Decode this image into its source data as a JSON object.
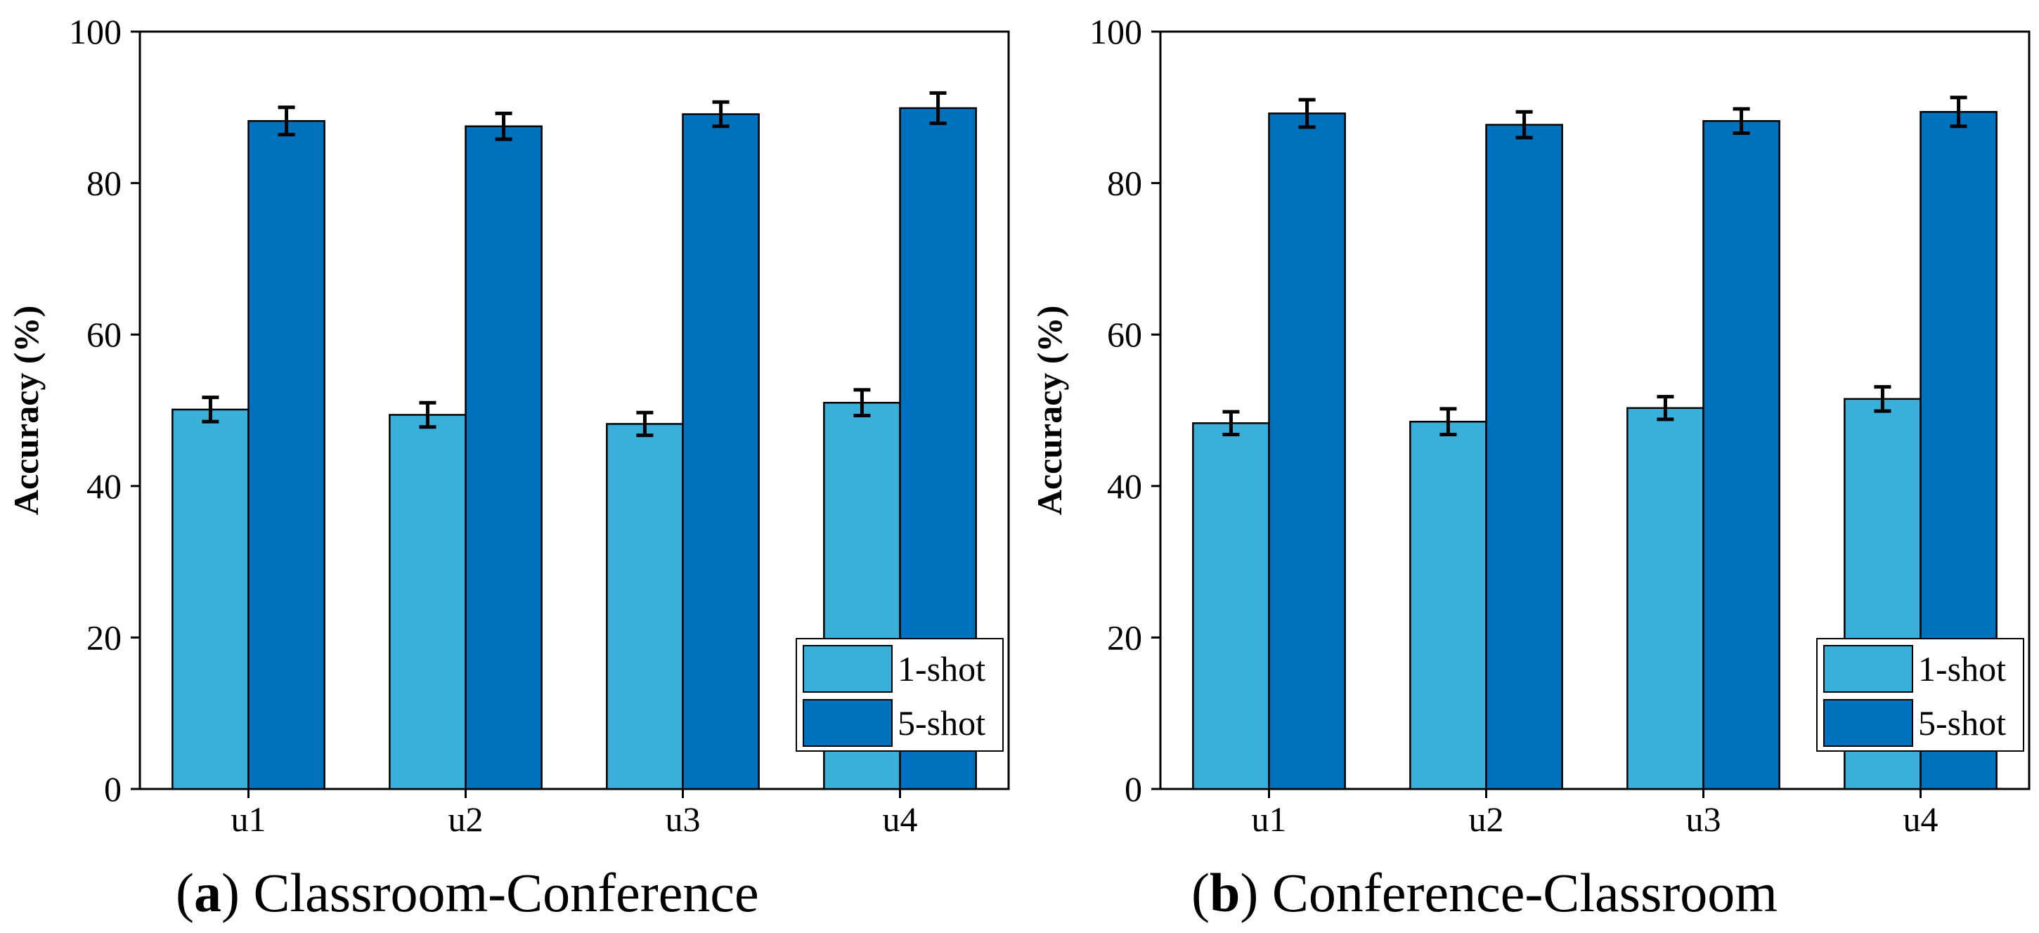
{
  "chart_data": [
    {
      "type": "bar",
      "panel_id": "a",
      "panel_label": "(a)",
      "title": "Classroom-Conference",
      "xlabel": "",
      "ylabel": "Accuracy (%)",
      "ylim": [
        0,
        100
      ],
      "yticks": [
        0,
        20,
        40,
        60,
        80,
        100
      ],
      "categories": [
        "u1",
        "u2",
        "u3",
        "u4"
      ],
      "series": [
        {
          "name": "1-shot",
          "color": "#3aafd9",
          "values": [
            50.1,
            49.4,
            48.2,
            51.0
          ],
          "errors": [
            1.6,
            1.6,
            1.5,
            1.7
          ]
        },
        {
          "name": "5-shot",
          "color": "#0072bd",
          "values": [
            88.2,
            87.5,
            89.1,
            89.9
          ],
          "errors": [
            1.8,
            1.7,
            1.6,
            2.0
          ]
        }
      ],
      "grid": false,
      "legend_position": "bottom-right",
      "error_bars": true
    },
    {
      "type": "bar",
      "panel_id": "b",
      "panel_label": "(b)",
      "title": "Conference-Classroom",
      "xlabel": "",
      "ylabel": "Accuracy (%)",
      "ylim": [
        0,
        100
      ],
      "yticks": [
        0,
        20,
        40,
        60,
        80,
        100
      ],
      "categories": [
        "u1",
        "u2",
        "u3",
        "u4"
      ],
      "series": [
        {
          "name": "1-shot",
          "color": "#3aafd9",
          "values": [
            48.3,
            48.5,
            50.3,
            51.5
          ],
          "errors": [
            1.5,
            1.7,
            1.5,
            1.6
          ]
        },
        {
          "name": "5-shot",
          "color": "#0072bd",
          "values": [
            89.2,
            87.7,
            88.2,
            89.4
          ],
          "errors": [
            1.8,
            1.7,
            1.6,
            1.9
          ]
        }
      ],
      "grid": false,
      "legend_position": "bottom-right",
      "error_bars": true
    }
  ]
}
